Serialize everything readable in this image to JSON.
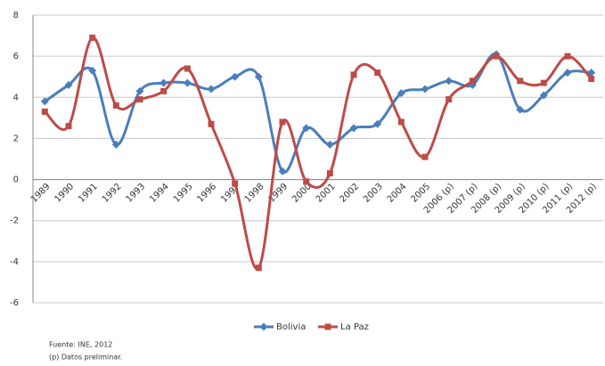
{
  "chart_data": {
    "type": "line",
    "categories": [
      "1989",
      "1990",
      "1991",
      "1992",
      "1993",
      "1994",
      "1995",
      "1996",
      "1997",
      "1998",
      "1999",
      "2000",
      "2001",
      "2002",
      "2003",
      "2004",
      "2005",
      "2006 (p)",
      "2007 (p)",
      "2008 (p)",
      "2009 (p)",
      "2010 (p)",
      "2011 (p)",
      "2012 (p)"
    ],
    "series": [
      {
        "name": "Bolivia",
        "color": "#4a7ebb",
        "marker": "diamond",
        "values": [
          3.8,
          4.6,
          5.3,
          1.7,
          4.3,
          4.7,
          4.7,
          4.4,
          5.0,
          5.0,
          0.4,
          2.5,
          1.7,
          2.5,
          2.7,
          4.2,
          4.4,
          4.8,
          4.6,
          6.1,
          3.4,
          4.1,
          5.2,
          5.2
        ]
      },
      {
        "name": "La Paz",
        "color": "#be4b48",
        "marker": "square",
        "values": [
          3.3,
          2.6,
          6.9,
          3.6,
          3.9,
          4.3,
          5.4,
          2.7,
          -0.2,
          -4.3,
          2.8,
          -0.1,
          0.3,
          5.1,
          5.2,
          2.8,
          1.1,
          3.9,
          4.8,
          6.0,
          4.8,
          4.7,
          6.0,
          4.9
        ]
      }
    ],
    "ylim": [
      -6,
      8
    ],
    "yticks": [
      -6,
      -4,
      -2,
      0,
      2,
      4,
      6,
      8
    ],
    "grid": true,
    "legend": "bottom",
    "source": "Fuente: INE, 2012",
    "note": "(p) Datos preliminar."
  }
}
